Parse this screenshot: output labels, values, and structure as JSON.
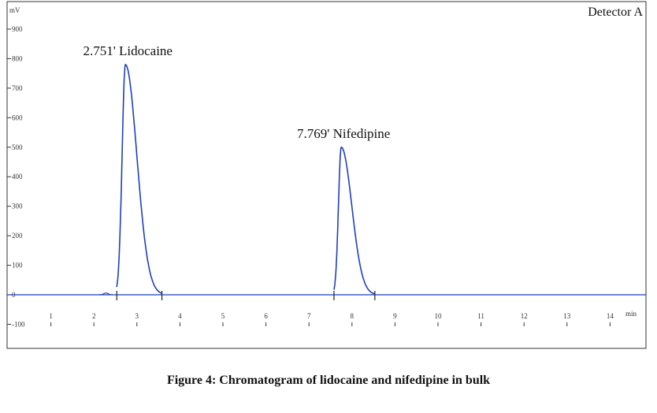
{
  "caption": "Figure 4: Chromatogram of lidocaine and nifedipine in bulk",
  "chart_data": {
    "type": "line",
    "detector_label": "Detector A",
    "y_unit": "mV",
    "x_unit": "min",
    "xlim": [
      0,
      15
    ],
    "ylim": [
      -180,
      1000
    ],
    "y_ticks": [
      -100,
      0,
      100,
      200,
      300,
      400,
      500,
      600,
      700,
      800,
      900
    ],
    "x_ticks": [
      1,
      2,
      3,
      4,
      5,
      6,
      7,
      8,
      9,
      10,
      11,
      12,
      13,
      14
    ],
    "grid": false,
    "legend": "none",
    "line_color": "#1f3fbf",
    "baseline": 0,
    "peaks": [
      {
        "label": "2.751' Lidocaine",
        "rt": 2.751,
        "height": 780,
        "start": 2.55,
        "end": 3.6
      },
      {
        "label": "7.769' Nifedipine",
        "rt": 7.769,
        "height": 500,
        "start": 7.6,
        "end": 8.55
      }
    ]
  }
}
